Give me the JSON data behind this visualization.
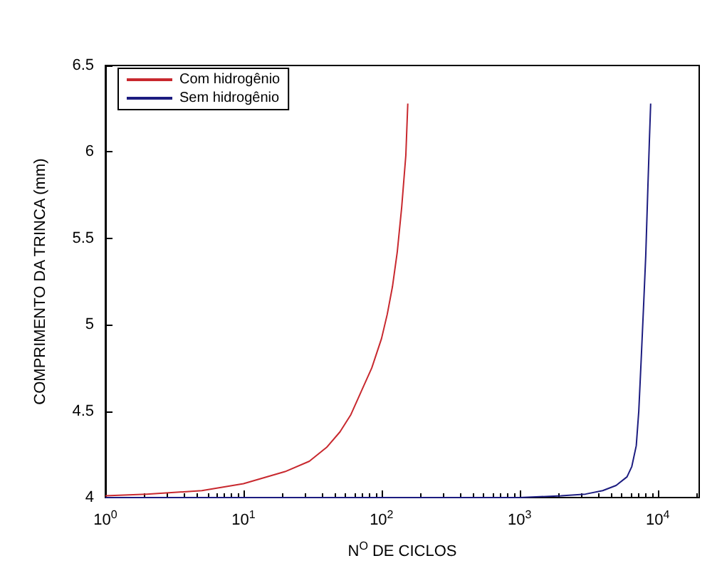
{
  "chart_data": {
    "type": "line",
    "xlabel": "N$^{O}$ DE CICLOS",
    "ylabel": "COMPRIMENTO DA TRINCA (mm)",
    "log": "x",
    "grid": false,
    "legend": "top left",
    "line_style": "solid",
    "marker": "none",
    "xlim": [
      1,
      20000
    ],
    "xticks": [
      {
        "value": 1,
        "label": "10$^{0}$"
      },
      {
        "value": 10,
        "label": "10$^{1}$"
      },
      {
        "value": 100,
        "label": "10$^{2}$"
      },
      {
        "value": 1000,
        "label": "10$^{3}$"
      },
      {
        "value": 10000,
        "label": "10$^{4}$"
      }
    ],
    "ylim": [
      4,
      6.5
    ],
    "yticks": [
      4,
      4.5,
      5,
      5.5,
      6,
      6.5
    ],
    "series": [
      {
        "name": "Com hidrogênio",
        "color": "#c8282e",
        "x": [
          1,
          2,
          5,
          10,
          20,
          30,
          40,
          50,
          60,
          70,
          85,
          100,
          110,
          120,
          130,
          140,
          150,
          155
        ],
        "values": [
          4.01,
          4.02,
          4.04,
          4.08,
          4.15,
          4.21,
          4.29,
          4.38,
          4.48,
          4.6,
          4.75,
          4.92,
          5.06,
          5.22,
          5.42,
          5.68,
          5.98,
          6.28
        ]
      },
      {
        "name": "Sem hidrogênio",
        "color": "#1c1c80",
        "x": [
          1,
          10,
          100,
          1000,
          2000,
          3000,
          4000,
          5000,
          6000,
          6500,
          7000,
          7300,
          7600,
          7900,
          8200,
          8500,
          8700,
          8900
        ],
        "values": [
          4,
          4,
          4,
          4,
          4.01,
          4.02,
          4.04,
          4.07,
          4.12,
          4.18,
          4.3,
          4.5,
          4.8,
          5.1,
          5.4,
          5.8,
          6.05,
          6.28
        ]
      }
    ]
  }
}
